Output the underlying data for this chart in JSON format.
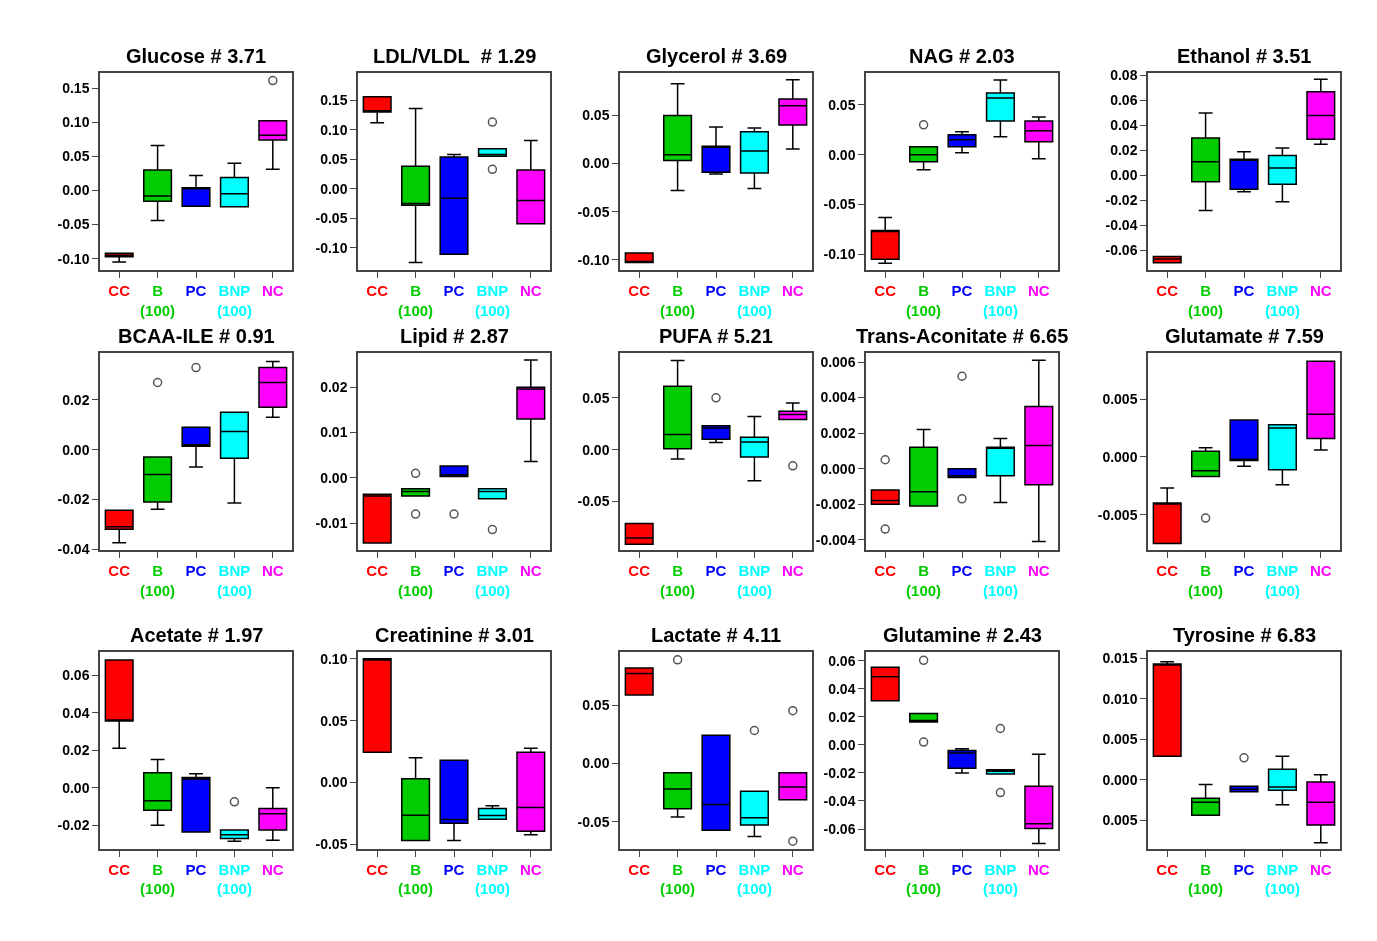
{
  "chart_data": [
    {
      "type": "box",
      "title": "Glucose # 3.71",
      "categories": [
        "CC",
        "B\n(100)",
        "PC",
        "BNP\n(100)",
        "NC"
      ],
      "colors": [
        "#ff0000",
        "#00cc00",
        "#0000ff",
        "#00ffff",
        "#ff00ff"
      ],
      "ylim": [
        -0.117,
        0.172
      ],
      "yticks": [
        {
          "value": -0.1,
          "label": "-0.10"
        },
        {
          "value": -0.05,
          "label": "-0.05"
        },
        {
          "value": 0,
          "label": "0.00"
        },
        {
          "value": 0.05,
          "label": "0.05"
        },
        {
          "value": 0.1,
          "label": "0.10"
        },
        {
          "value": 0.15,
          "label": "0.15"
        }
      ],
      "boxes": [
        {
          "low": -0.105,
          "q1": -0.097,
          "median": -0.095,
          "q3": -0.092,
          "high": -0.092
        },
        {
          "low": -0.044,
          "q1": -0.016,
          "median": -0.008,
          "q3": 0.03,
          "high": 0.066
        },
        {
          "low": -0.023,
          "q1": -0.023,
          "median": 0.003,
          "q3": 0.004,
          "high": 0.022
        },
        {
          "low": -0.024,
          "q1": -0.024,
          "median": -0.005,
          "q3": 0.019,
          "high": 0.04
        },
        {
          "low": 0.031,
          "q1": 0.074,
          "median": 0.081,
          "q3": 0.102,
          "high": 0.102,
          "outliers": [
            0.161
          ]
        }
      ]
    },
    {
      "type": "box",
      "title": "LDL/VLDL  # 1.29",
      "categories": [
        "CC",
        "B\n(100)",
        "PC",
        "BNP\n(100)",
        "NC"
      ],
      "colors": [
        "#ff0000",
        "#00cc00",
        "#0000ff",
        "#00ffff",
        "#ff00ff"
      ],
      "ylim": [
        -0.138,
        0.196
      ],
      "yticks": [
        {
          "value": -0.1,
          "label": "-0.10"
        },
        {
          "value": -0.05,
          "label": "-0.05"
        },
        {
          "value": 0,
          "label": "0.00"
        },
        {
          "value": 0.05,
          "label": "0.05"
        },
        {
          "value": 0.1,
          "label": "0.10"
        },
        {
          "value": 0.15,
          "label": "0.15"
        }
      ],
      "boxes": [
        {
          "low": 0.112,
          "q1": 0.13,
          "median": 0.132,
          "q3": 0.156,
          "high": 0.156
        },
        {
          "low": -0.125,
          "q1": -0.028,
          "median": -0.025,
          "q3": 0.038,
          "high": 0.136
        },
        {
          "low": -0.111,
          "q1": -0.111,
          "median": -0.016,
          "q3": 0.054,
          "high": 0.058
        },
        {
          "low": 0.055,
          "q1": 0.055,
          "median": 0.058,
          "q3": 0.068,
          "high": 0.068,
          "outliers": [
            0.113,
            0.033
          ]
        },
        {
          "low": -0.059,
          "q1": -0.059,
          "median": -0.02,
          "q3": 0.032,
          "high": 0.082
        }
      ]
    },
    {
      "type": "box",
      "title": "Glycerol # 3.69",
      "categories": [
        "CC",
        "B\n(100)",
        "PC",
        "BNP\n(100)",
        "NC"
      ],
      "colors": [
        "#ff0000",
        "#00cc00",
        "#0000ff",
        "#00ffff",
        "#ff00ff"
      ],
      "ylim": [
        -0.111,
        0.094
      ],
      "yticks": [
        {
          "value": -0.1,
          "label": "-0.10"
        },
        {
          "value": -0.05,
          "label": "-0.05"
        },
        {
          "value": 0,
          "label": "0.00"
        },
        {
          "value": 0.05,
          "label": "0.05"
        }
      ],
      "boxes": [
        {
          "low": -0.103,
          "q1": -0.103,
          "median": -0.103,
          "q3": -0.093,
          "high": -0.093
        },
        {
          "low": -0.028,
          "q1": 0.003,
          "median": 0.009,
          "q3": 0.05,
          "high": 0.083
        },
        {
          "low": -0.011,
          "q1": -0.009,
          "median": 0.017,
          "q3": 0.018,
          "high": 0.038
        },
        {
          "low": -0.026,
          "q1": -0.01,
          "median": 0.013,
          "q3": 0.033,
          "high": 0.037
        },
        {
          "low": 0.015,
          "q1": 0.04,
          "median": 0.06,
          "q3": 0.067,
          "high": 0.087
        }
      ]
    },
    {
      "type": "box",
      "title": "NAG # 2.03",
      "categories": [
        "CC",
        "B\n(100)",
        "PC",
        "BNP\n(100)",
        "NC"
      ],
      "colors": [
        "#ff0000",
        "#00cc00",
        "#0000ff",
        "#00ffff",
        "#ff00ff"
      ],
      "ylim": [
        -0.116,
        0.082
      ],
      "yticks": [
        {
          "value": -0.1,
          "label": "-0.10"
        },
        {
          "value": -0.05,
          "label": "-0.05"
        },
        {
          "value": 0,
          "label": "0.00"
        },
        {
          "value": 0.05,
          "label": "0.05"
        }
      ],
      "boxes": [
        {
          "low": -0.109,
          "q1": -0.105,
          "median": -0.076,
          "q3": -0.076,
          "high": -0.063
        },
        {
          "low": -0.015,
          "q1": -0.007,
          "median": 0.0,
          "q3": 0.008,
          "high": 0.008,
          "outliers": [
            0.03
          ]
        },
        {
          "low": 0.002,
          "q1": 0.008,
          "median": 0.015,
          "q3": 0.02,
          "high": 0.023
        },
        {
          "low": 0.018,
          "q1": 0.034,
          "median": 0.057,
          "q3": 0.062,
          "high": 0.075
        },
        {
          "low": -0.004,
          "q1": 0.013,
          "median": 0.024,
          "q3": 0.034,
          "high": 0.038
        }
      ]
    },
    {
      "type": "box",
      "title": "Ethanol # 3.51",
      "categories": [
        "CC",
        "B\n(100)",
        "PC",
        "BNP\n(100)",
        "NC"
      ],
      "colors": [
        "#ff0000",
        "#00cc00",
        "#0000ff",
        "#00ffff",
        "#ff00ff"
      ],
      "ylim": [
        -0.076,
        0.082
      ],
      "yticks": [
        {
          "value": -0.06,
          "label": "-0.06"
        },
        {
          "value": -0.04,
          "label": "-0.04"
        },
        {
          "value": -0.02,
          "label": "-0.02"
        },
        {
          "value": 0,
          "label": "0.00"
        },
        {
          "value": 0.02,
          "label": "0.02"
        },
        {
          "value": 0.04,
          "label": "0.04"
        },
        {
          "value": 0.06,
          "label": "0.06"
        },
        {
          "value": 0.08,
          "label": "0.08"
        }
      ],
      "boxes": [
        {
          "low": -0.07,
          "q1": -0.07,
          "median": -0.067,
          "q3": -0.065,
          "high": -0.065
        },
        {
          "low": -0.028,
          "q1": -0.005,
          "median": 0.011,
          "q3": 0.03,
          "high": 0.05
        },
        {
          "low": -0.013,
          "q1": -0.011,
          "median": 0.013,
          "q3": 0.013,
          "high": 0.019
        },
        {
          "low": -0.021,
          "q1": -0.007,
          "median": 0.006,
          "q3": 0.016,
          "high": 0.022
        },
        {
          "low": 0.025,
          "q1": 0.029,
          "median": 0.048,
          "q3": 0.067,
          "high": 0.077
        }
      ]
    },
    {
      "type": "box",
      "title": "BCAA-ILE # 0.91",
      "categories": [
        "CC",
        "B\n(100)",
        "PC",
        "BNP\n(100)",
        "NC"
      ],
      "colors": [
        "#ff0000",
        "#00cc00",
        "#0000ff",
        "#00ffff",
        "#ff00ff"
      ],
      "ylim": [
        -0.0405,
        0.0388
      ],
      "yticks": [
        {
          "value": -0.04,
          "label": "-0.04"
        },
        {
          "value": -0.02,
          "label": "-0.02"
        },
        {
          "value": 0,
          "label": "0.00"
        },
        {
          "value": 0.02,
          "label": "0.02"
        }
      ],
      "boxes": [
        {
          "low": -0.0374,
          "q1": -0.032,
          "median": -0.031,
          "q3": -0.0244,
          "high": -0.0244
        },
        {
          "low": -0.024,
          "q1": -0.021,
          "median": -0.01,
          "q3": -0.003,
          "high": -0.003,
          "outliers": [
            0.027
          ]
        },
        {
          "low": -0.007,
          "q1": 0.0014,
          "median": 0.002,
          "q3": 0.009,
          "high": 0.009,
          "outliers": [
            0.033
          ]
        },
        {
          "low": -0.0215,
          "q1": -0.0035,
          "median": 0.0073,
          "q3": 0.015,
          "high": 0.015
        },
        {
          "low": 0.013,
          "q1": 0.017,
          "median": 0.027,
          "q3": 0.033,
          "high": 0.0354
        }
      ]
    },
    {
      "type": "box",
      "title": "Lipid # 2.87",
      "categories": [
        "CC",
        "B\n(100)",
        "PC",
        "BNP\n(100)",
        "NC"
      ],
      "colors": [
        "#ff0000",
        "#00cc00",
        "#0000ff",
        "#00ffff",
        "#ff00ff"
      ],
      "ylim": [
        -0.016,
        0.0275
      ],
      "yticks": [
        {
          "value": -0.01,
          "label": "-0.01"
        },
        {
          "value": 0,
          "label": "0.00"
        },
        {
          "value": 0.01,
          "label": "0.01"
        },
        {
          "value": 0.02,
          "label": "0.02"
        }
      ],
      "boxes": [
        {
          "low": -0.0144,
          "q1": -0.0144,
          "median": -0.004,
          "q3": -0.0036,
          "high": -0.0036
        },
        {
          "low": -0.004,
          "q1": -0.004,
          "median": -0.003,
          "q3": -0.0024,
          "high": -0.0024,
          "outliers": [
            0.001,
            -0.008
          ]
        },
        {
          "low": 0.0003,
          "q1": 0.0003,
          "median": 0.0007,
          "q3": 0.0026,
          "high": 0.0026,
          "outliers": [
            -0.008
          ]
        },
        {
          "low": -0.0046,
          "q1": -0.0046,
          "median": -0.003,
          "q3": -0.0024,
          "high": -0.0024,
          "outliers": [
            -0.0114
          ]
        },
        {
          "low": 0.0036,
          "q1": 0.013,
          "median": 0.0196,
          "q3": 0.02,
          "high": 0.026
        }
      ]
    },
    {
      "type": "box",
      "title": "PUFA # 5.21",
      "categories": [
        "CC",
        "B\n(100)",
        "PC",
        "BNP\n(100)",
        "NC"
      ],
      "colors": [
        "#ff0000",
        "#00cc00",
        "#0000ff",
        "#00ffff",
        "#ff00ff"
      ],
      "ylim": [
        -0.097,
        0.093
      ],
      "yticks": [
        {
          "value": -0.05,
          "label": "-0.05"
        },
        {
          "value": 0,
          "label": "0.00"
        },
        {
          "value": 0.05,
          "label": "0.05"
        }
      ],
      "boxes": [
        {
          "low": -0.091,
          "q1": -0.091,
          "median": -0.085,
          "q3": -0.071,
          "high": -0.071
        },
        {
          "low": -0.009,
          "q1": 0.001,
          "median": 0.0146,
          "q3": 0.061,
          "high": 0.086
        },
        {
          "low": 0.007,
          "q1": 0.01,
          "median": 0.021,
          "q3": 0.023,
          "high": 0.023,
          "outliers": [
            0.05
          ]
        },
        {
          "low": -0.03,
          "q1": -0.007,
          "median": 0.0075,
          "q3": 0.012,
          "high": 0.032
        },
        {
          "low": 0.029,
          "q1": 0.029,
          "median": 0.034,
          "q3": 0.037,
          "high": 0.045,
          "outliers": [
            -0.0155
          ]
        }
      ]
    },
    {
      "type": "box",
      "title": "Trans-Aconitate # 6.65",
      "categories": [
        "CC",
        "B\n(100)",
        "PC",
        "BNP\n(100)",
        "NC"
      ],
      "colors": [
        "#ff0000",
        "#00cc00",
        "#0000ff",
        "#00ffff",
        "#ff00ff"
      ],
      "ylim": [
        -0.0046,
        0.0065
      ],
      "yticks": [
        {
          "value": -0.004,
          "label": "-0.004"
        },
        {
          "value": -0.002,
          "label": "-0.002"
        },
        {
          "value": 0,
          "label": "0.000"
        },
        {
          "value": 0.002,
          "label": "0.002"
        },
        {
          "value": 0.004,
          "label": "0.004"
        },
        {
          "value": 0.006,
          "label": "0.006"
        }
      ],
      "boxes": [
        {
          "low": -0.002,
          "q1": -0.002,
          "median": -0.0018,
          "q3": -0.0012,
          "high": -0.0012,
          "outliers": [
            0.0005,
            -0.0034
          ]
        },
        {
          "low": -0.0021,
          "q1": -0.0021,
          "median": -0.0013,
          "q3": 0.0012,
          "high": 0.0022
        },
        {
          "low": -0.0005,
          "q1": -0.0005,
          "median": -0.0004,
          "q3": 0.0,
          "high": 0.0,
          "outliers": [
            0.0052,
            -0.0017
          ]
        },
        {
          "low": -0.0019,
          "q1": -0.0004,
          "median": 0.0012,
          "q3": 0.0012,
          "high": 0.0017
        },
        {
          "low": -0.0041,
          "q1": -0.0009,
          "median": 0.0013,
          "q3": 0.0035,
          "high": 0.0061
        }
      ]
    },
    {
      "type": "box",
      "title": "Glutamate # 7.59",
      "categories": [
        "CC",
        "B\n(100)",
        "PC",
        "BNP\n(100)",
        "NC"
      ],
      "colors": [
        "#ff0000",
        "#00cc00",
        "#0000ff",
        "#00ffff",
        "#ff00ff"
      ],
      "ylim": [
        -0.0081,
        0.009
      ],
      "yticks": [
        {
          "value": -0.005,
          "label": "-0.005"
        },
        {
          "value": 0,
          "label": "0.000"
        },
        {
          "value": 0.005,
          "label": "0.005"
        }
      ],
      "boxes": [
        {
          "low": -0.0075,
          "q1": -0.0075,
          "median": -0.004,
          "q3": -0.004,
          "high": -0.0027
        },
        {
          "low": -0.0017,
          "q1": -0.0017,
          "median": -0.0012,
          "q3": 0.0005,
          "high": 0.0008,
          "outliers": [
            -0.0053
          ]
        },
        {
          "low": -0.0008,
          "q1": -0.0003,
          "median": -0.0002,
          "q3": 0.0032,
          "high": 0.0032
        },
        {
          "low": -0.0024,
          "q1": -0.0011,
          "median": 0.0025,
          "q3": 0.0028,
          "high": 0.0028
        },
        {
          "low": 0.0006,
          "q1": 0.0016,
          "median": 0.0037,
          "q3": 0.0083,
          "high": 0.0083
        }
      ]
    },
    {
      "type": "box",
      "title": "Acetate # 1.97",
      "categories": [
        "CC",
        "B\n(100)",
        "PC",
        "BNP\n(100)",
        "NC"
      ],
      "colors": [
        "#ff0000",
        "#00cc00",
        "#0000ff",
        "#00ffff",
        "#ff00ff"
      ],
      "ylim": [
        -0.0327,
        0.0723
      ],
      "yticks": [
        {
          "value": -0.02,
          "label": "-0.02"
        },
        {
          "value": 0,
          "label": "0.00"
        },
        {
          "value": 0.02,
          "label": "0.02"
        },
        {
          "value": 0.04,
          "label": "0.04"
        },
        {
          "value": 0.06,
          "label": "0.06"
        }
      ],
      "boxes": [
        {
          "low": 0.021,
          "q1": 0.0355,
          "median": 0.036,
          "q3": 0.068,
          "high": 0.068
        },
        {
          "low": -0.02,
          "q1": -0.012,
          "median": -0.0069,
          "q3": 0.008,
          "high": 0.015
        },
        {
          "low": -0.0235,
          "q1": -0.0235,
          "median": 0.0046,
          "q3": 0.0055,
          "high": 0.0075
        },
        {
          "low": -0.0285,
          "q1": -0.027,
          "median": -0.025,
          "q3": -0.0225,
          "high": -0.0225,
          "outliers": [
            -0.0075
          ]
        },
        {
          "low": -0.028,
          "q1": -0.0225,
          "median": -0.0138,
          "q3": -0.011,
          "high": 0.0
        }
      ]
    },
    {
      "type": "box",
      "title": "Creatinine # 3.01",
      "categories": [
        "CC",
        "B\n(100)",
        "PC",
        "BNP\n(100)",
        "NC"
      ],
      "colors": [
        "#ff0000",
        "#00cc00",
        "#0000ff",
        "#00ffff",
        "#ff00ff"
      ],
      "ylim": [
        -0.054,
        0.1056
      ],
      "yticks": [
        {
          "value": -0.05,
          "label": "-0.05"
        },
        {
          "value": 0,
          "label": "0.00"
        },
        {
          "value": 0.05,
          "label": "0.05"
        },
        {
          "value": 0.1,
          "label": "0.10"
        }
      ],
      "boxes": [
        {
          "low": 0.0245,
          "q1": 0.0245,
          "median": 0.099,
          "q3": 0.1,
          "high": 0.1
        },
        {
          "low": -0.047,
          "q1": -0.047,
          "median": -0.0265,
          "q3": 0.003,
          "high": 0.02
        },
        {
          "low": -0.047,
          "q1": -0.033,
          "median": -0.03,
          "q3": 0.018,
          "high": 0.018
        },
        {
          "low": -0.0297,
          "q1": -0.0297,
          "median": -0.0268,
          "q3": -0.021,
          "high": -0.0188
        },
        {
          "low": -0.0424,
          "q1": -0.0394,
          "median": -0.0203,
          "q3": 0.0245,
          "high": 0.0276
        }
      ]
    },
    {
      "type": "box",
      "title": "Lactate # 4.11",
      "categories": [
        "CC",
        "B\n(100)",
        "PC",
        "BNP\n(100)",
        "NC"
      ],
      "colors": [
        "#ff0000",
        "#00cc00",
        "#0000ff",
        "#00ffff",
        "#ff00ff"
      ],
      "ylim": [
        -0.0737,
        0.0958
      ],
      "yticks": [
        {
          "value": -0.05,
          "label": "-0.05"
        },
        {
          "value": 0,
          "label": "0.00"
        },
        {
          "value": 0.05,
          "label": "0.05"
        }
      ],
      "boxes": [
        {
          "low": 0.0587,
          "q1": 0.0587,
          "median": 0.0773,
          "q3": 0.082,
          "high": 0.082
        },
        {
          "low": -0.046,
          "q1": -0.039,
          "median": -0.0219,
          "q3": -0.008,
          "high": -0.008,
          "outliers": [
            0.089
          ]
        },
        {
          "low": -0.0575,
          "q1": -0.0575,
          "median": -0.0352,
          "q3": 0.0243,
          "high": 0.0243
        },
        {
          "low": -0.0628,
          "q1": -0.053,
          "median": -0.0466,
          "q3": -0.0239,
          "high": -0.0239,
          "outliers": [
            0.0283
          ]
        },
        {
          "low": -0.0312,
          "q1": -0.0312,
          "median": -0.0202,
          "q3": -0.008,
          "high": -0.008,
          "outliers": [
            0.0453,
            -0.0668
          ]
        }
      ]
    },
    {
      "type": "box",
      "title": "Glutamine # 2.43",
      "categories": [
        "CC",
        "B\n(100)",
        "PC",
        "BNP\n(100)",
        "NC"
      ],
      "colors": [
        "#ff0000",
        "#00cc00",
        "#0000ff",
        "#00ffff",
        "#ff00ff"
      ],
      "ylim": [
        -0.0744,
        0.0663
      ],
      "yticks": [
        {
          "value": -0.06,
          "label": "-0.06"
        },
        {
          "value": -0.04,
          "label": "-0.04"
        },
        {
          "value": -0.02,
          "label": "-0.02"
        },
        {
          "value": 0,
          "label": "0.00"
        },
        {
          "value": 0.02,
          "label": "0.02"
        },
        {
          "value": 0.04,
          "label": "0.04"
        },
        {
          "value": 0.06,
          "label": "0.06"
        }
      ],
      "boxes": [
        {
          "low": 0.0315,
          "q1": 0.0315,
          "median": 0.0486,
          "q3": 0.0553,
          "high": 0.0553
        },
        {
          "low": 0.0164,
          "q1": 0.0164,
          "median": 0.0174,
          "q3": 0.0224,
          "high": 0.0224,
          "outliers": [
            0.0603,
            0.002
          ]
        },
        {
          "low": -0.02,
          "q1": -0.0167,
          "median": -0.0057,
          "q3": -0.004,
          "high": -0.0027
        },
        {
          "low": -0.0208,
          "q1": -0.0208,
          "median": -0.0188,
          "q3": -0.0178,
          "high": -0.0178,
          "outliers": [
            0.0117,
            -0.034
          ]
        },
        {
          "low": -0.0704,
          "q1": -0.0596,
          "median": -0.0563,
          "q3": -0.0295,
          "high": -0.0067
        }
      ]
    },
    {
      "type": "box",
      "title": "Tyrosine # 6.83",
      "categories": [
        "CC",
        "B\n(100)",
        "PC",
        "BNP\n(100)",
        "NC"
      ],
      "colors": [
        "#ff0000",
        "#00cc00",
        "#0000ff",
        "#00ffff",
        "#ff00ff"
      ],
      "ylim": [
        -0.0086,
        0.0158
      ],
      "yticks": [
        {
          "value": -0.005,
          "label": "0.005"
        },
        {
          "value": 0,
          "label": "0.000"
        },
        {
          "value": 0.005,
          "label": "0.005"
        },
        {
          "value": 0.01,
          "label": "0.010"
        },
        {
          "value": 0.015,
          "label": "0.015"
        }
      ],
      "boxes": [
        {
          "low": 0.0029,
          "q1": 0.0029,
          "median": 0.0142,
          "q3": 0.0143,
          "high": 0.0146
        },
        {
          "low": -0.0044,
          "q1": -0.0044,
          "median": -0.0028,
          "q3": -0.0023,
          "high": -0.0006
        },
        {
          "low": -0.0015,
          "q1": -0.0015,
          "median": -0.0012,
          "q3": -0.0008,
          "high": -0.0008,
          "outliers": [
            0.0027
          ]
        },
        {
          "low": -0.0031,
          "q1": -0.0013,
          "median": -0.0009,
          "q3": 0.0013,
          "high": 0.0029
        },
        {
          "low": -0.0078,
          "q1": -0.0056,
          "median": -0.0028,
          "q3": -0.0003,
          "high": 0.0006
        }
      ]
    }
  ]
}
